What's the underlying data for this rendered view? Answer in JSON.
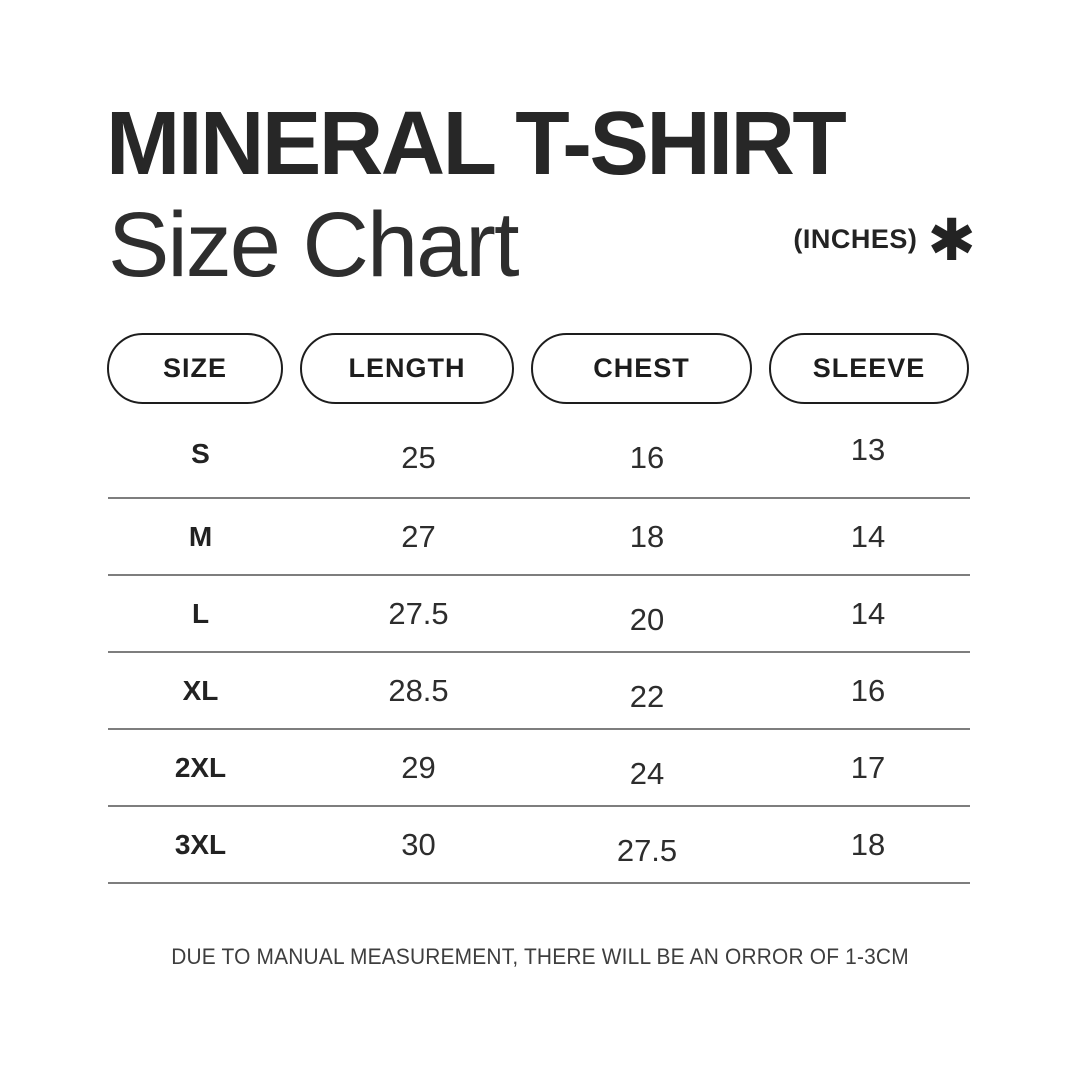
{
  "header": {
    "title": "MINERAL T-SHIRT",
    "subtitle": "Size Chart",
    "units_label": "(INCHES)",
    "asterisk_glyph": "✱"
  },
  "table": {
    "columns": [
      "SIZE",
      "LENGTH",
      "CHEST",
      "SLEEVE"
    ],
    "rows": [
      {
        "size": "S",
        "length": "25",
        "chest": "16",
        "sleeve": "13"
      },
      {
        "size": "M",
        "length": "27",
        "chest": "18",
        "sleeve": "14"
      },
      {
        "size": "L",
        "length": "27.5",
        "chest": "20",
        "sleeve": "14"
      },
      {
        "size": "XL",
        "length": "28.5",
        "chest": "22",
        "sleeve": "16"
      },
      {
        "size": "2XL",
        "length": "29",
        "chest": "24",
        "sleeve": "17"
      },
      {
        "size": "3XL",
        "length": "30",
        "chest": "27.5",
        "sleeve": "18"
      }
    ]
  },
  "footer": {
    "note": "DUE TO MANUAL MEASUREMENT, THERE WILL BE AN ORROR OF 1-3CM"
  },
  "colors": {
    "background": "#ffffff",
    "title_text": "#272727",
    "body_text": "#2d2d2d",
    "pill_border": "#1d1d1d",
    "divider_line": "#7e7e7e"
  }
}
